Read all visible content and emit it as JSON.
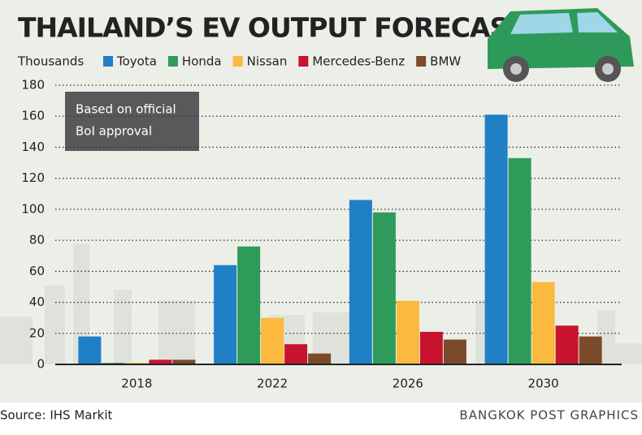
{
  "chart_data": {
    "type": "bar",
    "title": "THAILAND’S EV OUTPUT FORECAST",
    "y_unit": "Thousands",
    "annotation": [
      "Based on official",
      "BoI approval"
    ],
    "source": "Source: IHS Markit",
    "credit": "BANGKOK POST GRAPHICS",
    "categories": [
      "2018",
      "2022",
      "2026",
      "2030"
    ],
    "series": [
      {
        "name": "Toyota",
        "color": "#1f80c6",
        "values": [
          18,
          64,
          106,
          161
        ]
      },
      {
        "name": "Honda",
        "color": "#2f9b5b",
        "values": [
          1,
          76,
          98,
          133
        ]
      },
      {
        "name": "Nissan",
        "color": "#fbb93d",
        "values": [
          1,
          30,
          41,
          53
        ]
      },
      {
        "name": "Mercedes-Benz",
        "color": "#c8132f",
        "values": [
          3,
          13,
          21,
          25
        ]
      },
      {
        "name": "BMW",
        "color": "#7b4a2b",
        "values": [
          3,
          7,
          16,
          18
        ]
      }
    ],
    "ylim": [
      0,
      180
    ],
    "yticks": [
      0,
      20,
      40,
      60,
      80,
      100,
      120,
      140,
      160,
      180
    ],
    "grid": true
  }
}
